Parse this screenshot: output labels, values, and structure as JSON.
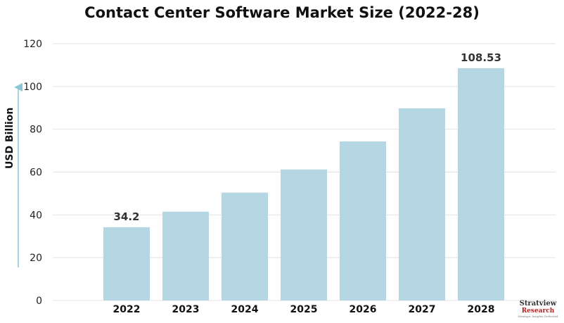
{
  "chart_data": {
    "type": "bar",
    "title": "Contact Center Software Market Size (2022-28)",
    "ylabel": "USD Billion",
    "xlabel": "",
    "categories": [
      "2022",
      "2023",
      "2024",
      "2025",
      "2026",
      "2027",
      "2028"
    ],
    "values": [
      34.2,
      41.5,
      50.4,
      61.2,
      74.3,
      89.8,
      108.53
    ],
    "data_labels": [
      "34.2",
      "",
      "",
      "",
      "",
      "",
      "108.53"
    ],
    "yticks": [
      0,
      20,
      40,
      60,
      80,
      100,
      120
    ],
    "ylim": [
      0,
      120
    ],
    "grid": true,
    "bar_color": "#b5d6e3",
    "grid_color": "#e3e3e3",
    "arrow_color": "#8fc3d6"
  },
  "logo": {
    "line1": "Stratview",
    "line2": "Research",
    "line3": "Strategic Insights Delivered",
    "icon": "target-icon"
  }
}
